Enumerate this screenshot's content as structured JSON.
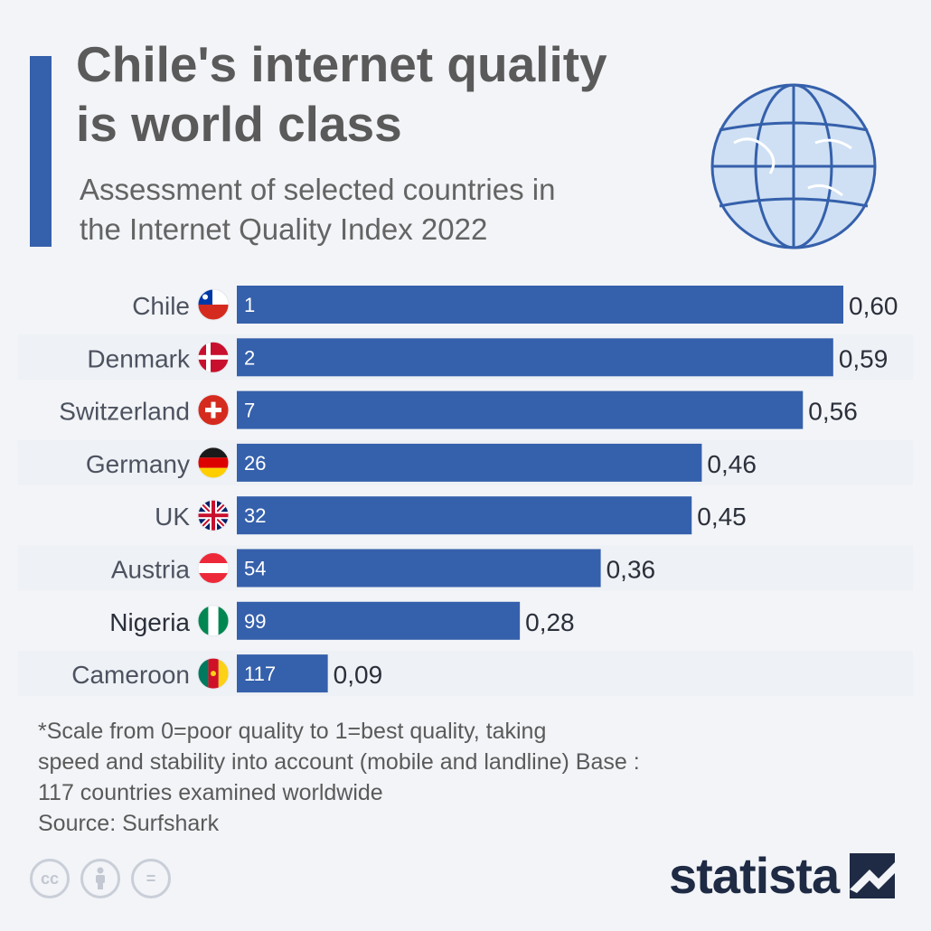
{
  "header": {
    "title_line1": "Chile's internet quality",
    "title_line2": "is world class",
    "subtitle_line1": "Assessment of selected countries in",
    "subtitle_line2": "the Internet Quality Index 2022"
  },
  "chart_data": {
    "type": "bar",
    "orientation": "horizontal",
    "categories": [
      "Chile",
      "Denmark",
      "Switzerland",
      "Germany",
      "UK",
      "Austria",
      "Nigeria",
      "Cameroon"
    ],
    "values": [
      0.6,
      0.59,
      0.56,
      0.46,
      0.45,
      0.36,
      0.28,
      0.09
    ],
    "value_labels": [
      "0,60",
      "0,59",
      "0,56",
      "0,46",
      "0,45",
      "0,36",
      "0,28",
      "0,09"
    ],
    "rank_labels": [
      "1",
      "2",
      "7",
      "26",
      "32",
      "54",
      "99",
      "117"
    ],
    "bar_color": "#3560ab",
    "xlim": [
      0,
      0.6
    ],
    "grid": false,
    "legend": "none",
    "flag_icons": [
      "chile-flag-icon",
      "denmark-flag-icon",
      "switzerland-flag-icon",
      "germany-flag-icon",
      "uk-flag-icon",
      "austria-flag-icon",
      "nigeria-flag-icon",
      "cameroon-flag-icon"
    ]
  },
  "footnote": {
    "line1": "*Scale from 0=poor quality to 1=best quality, taking",
    "line2": "speed and stability into account (mobile and landline) Base :",
    "line3": "117 countries examined worldwide",
    "source": "Source: Surfshark"
  },
  "license": {
    "cc_label": "cc",
    "nd_label": "="
  },
  "brand": {
    "name": "statista"
  },
  "colors": {
    "accent": "#3560ab",
    "background": "#f2f4f7",
    "title": "#5a5a5a",
    "brand": "#1f2a44"
  }
}
